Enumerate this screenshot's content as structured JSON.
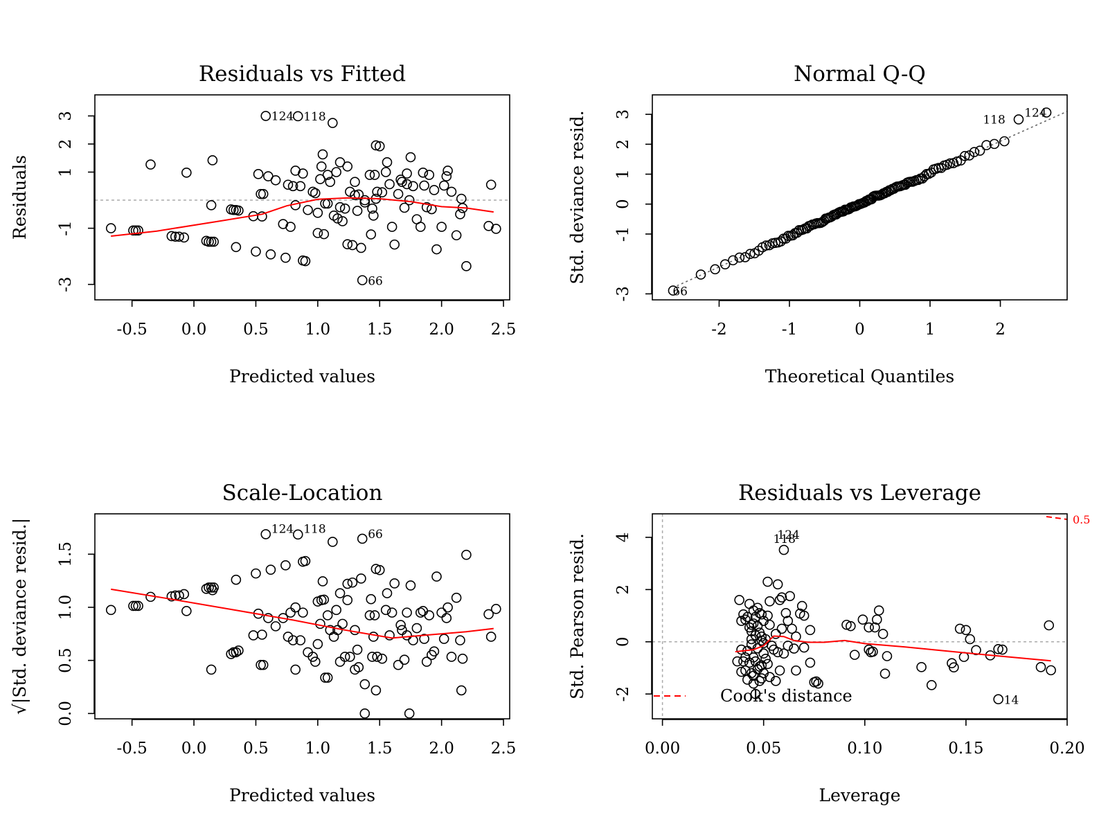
{
  "chart_data": [
    {
      "type": "scatter",
      "title": "Residuals vs Fitted",
      "xlabel": "Predicted values",
      "ylabel": "Residuals",
      "xlim": [
        -0.8,
        2.55
      ],
      "ylim": [
        -3.55,
        3.75
      ],
      "xticks": [
        "-0.5",
        "0.0",
        "0.5",
        "1.0",
        "1.5",
        "2.0",
        "2.5"
      ],
      "yticks": [
        "-3",
        "-1",
        "1",
        "2",
        "3"
      ],
      "reference_line": 0,
      "smooth_color": "#ff0000",
      "points": [
        [
          -0.67,
          -1.0
        ],
        [
          -0.49,
          -1.08
        ],
        [
          -0.47,
          -1.08
        ],
        [
          -0.45,
          -1.08
        ],
        [
          -0.35,
          1.27
        ],
        [
          -0.18,
          -1.28
        ],
        [
          -0.15,
          -1.3
        ],
        [
          -0.12,
          -1.3
        ],
        [
          -0.08,
          -1.33
        ],
        [
          -0.06,
          0.98
        ],
        [
          0.1,
          -1.45
        ],
        [
          0.12,
          -1.48
        ],
        [
          0.14,
          -1.48
        ],
        [
          0.15,
          1.42
        ],
        [
          0.16,
          -1.48
        ],
        [
          0.14,
          -0.18
        ],
        [
          0.3,
          -0.33
        ],
        [
          0.32,
          -0.35
        ],
        [
          0.34,
          -0.35
        ],
        [
          0.36,
          -0.37
        ],
        [
          0.34,
          -1.67
        ],
        [
          0.48,
          -0.57
        ],
        [
          0.5,
          -1.83
        ],
        [
          0.52,
          0.93
        ],
        [
          0.54,
          0.22
        ],
        [
          0.55,
          -0.58
        ],
        [
          0.56,
          0.22
        ],
        [
          0.58,
          3.0
        ],
        [
          0.6,
          0.85
        ],
        [
          0.62,
          -1.93
        ],
        [
          0.66,
          0.71
        ],
        [
          0.72,
          -0.85
        ],
        [
          0.74,
          -2.05
        ],
        [
          0.76,
          0.55
        ],
        [
          0.78,
          -0.95
        ],
        [
          0.8,
          0.5
        ],
        [
          0.82,
          -0.18
        ],
        [
          0.84,
          2.99
        ],
        [
          0.82,
          1.05
        ],
        [
          0.86,
          0.5
        ],
        [
          0.88,
          -2.15
        ],
        [
          0.88,
          0.95
        ],
        [
          0.9,
          -2.17
        ],
        [
          0.92,
          -0.35
        ],
        [
          0.96,
          0.3
        ],
        [
          0.98,
          0.25
        ],
        [
          1.0,
          -0.45
        ],
        [
          1.0,
          -1.17
        ],
        [
          1.02,
          0.75
        ],
        [
          1.03,
          1.2
        ],
        [
          1.04,
          1.63
        ],
        [
          1.05,
          -1.21
        ],
        [
          1.06,
          -0.12
        ],
        [
          1.08,
          -0.12
        ],
        [
          1.08,
          0.9
        ],
        [
          1.1,
          0.65
        ],
        [
          1.12,
          2.75
        ],
        [
          1.13,
          -0.55
        ],
        [
          1.15,
          1.0
        ],
        [
          1.16,
          -0.65
        ],
        [
          1.18,
          -0.25
        ],
        [
          1.18,
          1.35
        ],
        [
          1.2,
          -0.75
        ],
        [
          1.22,
          -0.3
        ],
        [
          1.24,
          1.2
        ],
        [
          1.24,
          -1.57
        ],
        [
          1.26,
          0.3
        ],
        [
          1.28,
          -1.6
        ],
        [
          1.3,
          0.65
        ],
        [
          1.3,
          0.18
        ],
        [
          1.32,
          -0.38
        ],
        [
          1.33,
          0.2
        ],
        [
          1.35,
          -1.7
        ],
        [
          1.36,
          -2.85
        ],
        [
          1.38,
          -0.08
        ],
        [
          1.38,
          0.0
        ],
        [
          1.42,
          0.9
        ],
        [
          1.43,
          -1.22
        ],
        [
          1.44,
          -0.3
        ],
        [
          1.45,
          -0.55
        ],
        [
          1.46,
          0.9
        ],
        [
          1.47,
          0.05
        ],
        [
          1.47,
          1.95
        ],
        [
          1.48,
          0.3
        ],
        [
          1.5,
          1.92
        ],
        [
          1.52,
          0.28
        ],
        [
          1.55,
          1.0
        ],
        [
          1.56,
          1.35
        ],
        [
          1.58,
          0.57
        ],
        [
          1.6,
          -0.95
        ],
        [
          1.62,
          -1.58
        ],
        [
          1.65,
          0.22
        ],
        [
          1.67,
          0.73
        ],
        [
          1.68,
          0.65
        ],
        [
          1.7,
          -0.27
        ],
        [
          1.72,
          0.57
        ],
        [
          1.72,
          0.95
        ],
        [
          1.74,
          0.0
        ],
        [
          1.75,
          1.53
        ],
        [
          1.77,
          0.5
        ],
        [
          1.8,
          -0.68
        ],
        [
          1.83,
          -0.95
        ],
        [
          1.85,
          0.98
        ],
        [
          1.86,
          0.52
        ],
        [
          1.88,
          -0.25
        ],
        [
          1.9,
          0.9
        ],
        [
          1.92,
          -0.32
        ],
        [
          1.94,
          0.36
        ],
        [
          1.96,
          -1.75
        ],
        [
          2.0,
          -0.95
        ],
        [
          2.02,
          0.52
        ],
        [
          2.04,
          0.85
        ],
        [
          2.05,
          1.05
        ],
        [
          2.08,
          0.3
        ],
        [
          2.12,
          -1.25
        ],
        [
          2.15,
          -0.5
        ],
        [
          2.16,
          0.05
        ],
        [
          2.17,
          -0.28
        ],
        [
          2.2,
          -2.35
        ],
        [
          2.38,
          -0.92
        ],
        [
          2.4,
          0.55
        ],
        [
          2.44,
          -1.02
        ]
      ],
      "point_labels": [
        {
          "text": "124",
          "x": 0.58,
          "y": 3.0
        },
        {
          "text": "118",
          "x": 0.84,
          "y": 2.99
        },
        {
          "text": "66",
          "x": 1.36,
          "y": -2.85
        }
      ],
      "smooth": [
        [
          -0.67,
          -1.28
        ],
        [
          -0.3,
          -1.1
        ],
        [
          0.2,
          -0.75
        ],
        [
          0.55,
          -0.5
        ],
        [
          0.75,
          -0.2
        ],
        [
          1.0,
          0.03
        ],
        [
          1.25,
          0.08
        ],
        [
          1.5,
          0.05
        ],
        [
          1.75,
          -0.05
        ],
        [
          2.0,
          -0.23
        ],
        [
          2.2,
          -0.28
        ],
        [
          2.42,
          -0.42
        ]
      ]
    },
    {
      "type": "scatter",
      "title": "Normal Q-Q",
      "xlabel": "Theoretical Quantiles",
      "ylabel": "Std. deviance resid.",
      "xlim": [
        -2.95,
        2.95
      ],
      "ylim": [
        -3.2,
        3.65
      ],
      "xticks": [
        "-2",
        "-1",
        "0",
        "1",
        "2"
      ],
      "yticks": [
        "-3",
        "-1",
        "0",
        "1",
        "2",
        "3"
      ],
      "reference_line": "y = x",
      "point_labels": [
        {
          "text": "118",
          "x": 2.15,
          "y": 2.83
        },
        {
          "text": "124",
          "x": 2.74,
          "y": 3.06
        },
        {
          "text": "66",
          "x": -2.74,
          "y": -2.89
        }
      ]
    },
    {
      "type": "scatter",
      "title": "Scale-Location",
      "xlabel": "Predicted values",
      "ylabel": "√|Std. deviance resid.|",
      "xlim": [
        -0.8,
        2.55
      ],
      "ylim": [
        -0.05,
        1.88
      ],
      "xticks": [
        "-0.5",
        "0.0",
        "0.5",
        "1.0",
        "1.5",
        "2.0",
        "2.5"
      ],
      "yticks": [
        "0.0",
        "0.5",
        "1.0",
        "1.5"
      ],
      "smooth_color": "#ff0000",
      "point_labels": [
        {
          "text": "124",
          "x": 0.58,
          "y": 1.74
        },
        {
          "text": "118",
          "x": 0.84,
          "y": 1.74
        },
        {
          "text": "66",
          "x": 1.36,
          "y": 1.69
        }
      ],
      "smooth": [
        [
          -0.67,
          1.17
        ],
        [
          -0.2,
          1.08
        ],
        [
          0.3,
          0.98
        ],
        [
          0.8,
          0.88
        ],
        [
          1.2,
          0.79
        ],
        [
          1.6,
          0.71
        ],
        [
          1.9,
          0.74
        ],
        [
          2.2,
          0.77
        ],
        [
          2.42,
          0.8
        ]
      ]
    },
    {
      "type": "scatter",
      "title": "Residuals vs Leverage",
      "xlabel": "Leverage",
      "ylabel": "Std. Pearson resid.",
      "xlim": [
        -0.005,
        0.2
      ],
      "ylim": [
        -2.95,
        4.9
      ],
      "xticks": [
        "0.00",
        "0.05",
        "0.10",
        "0.15",
        "0.20"
      ],
      "yticks": [
        "-2",
        "0",
        "2",
        "4"
      ],
      "reference_line": 0,
      "smooth_color": "#ff0000",
      "legend": {
        "text": "Cook's distance",
        "position": "bottom-left",
        "color": "#ff0000",
        "line": "dashed"
      },
      "cook_label": "0.5",
      "point_labels": [
        {
          "text": "124",
          "x": 0.054,
          "y": 4.1
        },
        {
          "text": "118",
          "x": 0.052,
          "y": 3.95
        },
        {
          "text": "14",
          "x": 0.166,
          "y": -2.2
        }
      ],
      "points": [
        [
          0.187,
          -0.97
        ],
        [
          0.192,
          -1.09
        ],
        [
          0.191,
          0.63
        ],
        [
          0.166,
          -0.28
        ],
        [
          0.168,
          -0.3
        ],
        [
          0.162,
          -0.52
        ],
        [
          0.166,
          -2.2
        ],
        [
          0.155,
          -0.32
        ],
        [
          0.152,
          0.1
        ],
        [
          0.149,
          -0.58
        ],
        [
          0.15,
          0.45
        ],
        [
          0.147,
          0.5
        ],
        [
          0.144,
          -0.98
        ],
        [
          0.143,
          -0.82
        ],
        [
          0.133,
          -1.66
        ],
        [
          0.128,
          -0.97
        ],
        [
          0.111,
          -0.55
        ],
        [
          0.11,
          -1.22
        ],
        [
          0.109,
          0.3
        ],
        [
          0.107,
          1.2
        ],
        [
          0.106,
          0.85
        ],
        [
          0.105,
          0.55
        ],
        [
          0.104,
          -0.38
        ],
        [
          0.103,
          -0.4
        ],
        [
          0.102,
          -0.3
        ],
        [
          0.102,
          0.55
        ],
        [
          0.099,
          0.85
        ],
        [
          0.095,
          -0.5
        ],
        [
          0.093,
          0.6
        ],
        [
          0.091,
          0.65
        ],
        [
          0.077,
          -1.6
        ],
        [
          0.076,
          -1.52
        ],
        [
          0.075,
          -1.55
        ],
        [
          0.073,
          -0.8
        ],
        [
          0.073,
          0.45
        ],
        [
          0.07,
          -0.22
        ],
        [
          0.07,
          1.0
        ],
        [
          0.069,
          1.37
        ],
        [
          0.068,
          1.08
        ],
        [
          0.066,
          -1.1
        ],
        [
          0.066,
          0.2
        ],
        [
          0.065,
          -0.26
        ],
        [
          0.064,
          0.5
        ],
        [
          0.063,
          1.75
        ],
        [
          0.062,
          -0.15
        ],
        [
          0.062,
          0.8
        ],
        [
          0.061,
          1.1
        ],
        [
          0.06,
          3.52
        ],
        [
          0.06,
          -0.45
        ],
        [
          0.059,
          1.7
        ],
        [
          0.059,
          0.5
        ],
        [
          0.058,
          -1.1
        ],
        [
          0.058,
          1.6
        ],
        [
          0.057,
          2.2
        ],
        [
          0.057,
          -0.4
        ],
        [
          0.056,
          0.3
        ],
        [
          0.056,
          -1.5
        ],
        [
          0.055,
          -0.3
        ],
        [
          0.054,
          -0.15
        ],
        [
          0.053,
          0.65
        ],
        [
          0.053,
          1.55
        ],
        [
          0.052,
          -0.85
        ],
        [
          0.052,
          2.3
        ],
        [
          0.052,
          1.0
        ],
        [
          0.051,
          0.1
        ],
        [
          0.051,
          -0.65
        ],
        [
          0.05,
          -0.45
        ],
        [
          0.05,
          0.8
        ],
        [
          0.05,
          -1.2
        ],
        [
          0.049,
          1.05
        ],
        [
          0.049,
          0.2
        ],
        [
          0.049,
          -1.4
        ],
        [
          0.048,
          1.1
        ],
        [
          0.048,
          -0.95
        ],
        [
          0.048,
          0.35
        ],
        [
          0.047,
          0.6
        ],
        [
          0.047,
          -1.05
        ],
        [
          0.047,
          -0.25
        ],
        [
          0.046,
          0.95
        ],
        [
          0.046,
          -0.75
        ],
        [
          0.046,
          0.25
        ],
        [
          0.045,
          1.2
        ],
        [
          0.045,
          -1.6
        ],
        [
          0.045,
          -0.6
        ],
        [
          0.045,
          0.7
        ],
        [
          0.045,
          -1.3
        ],
        [
          0.044,
          0.1
        ],
        [
          0.044,
          -0.1
        ],
        [
          0.044,
          -1.2
        ],
        [
          0.044,
          0.4
        ],
        [
          0.043,
          1.45
        ],
        [
          0.043,
          -0.8
        ],
        [
          0.043,
          0.55
        ],
        [
          0.042,
          -1.45
        ],
        [
          0.042,
          0.95
        ],
        [
          0.042,
          -0.35
        ],
        [
          0.041,
          0.85
        ],
        [
          0.041,
          -1.1
        ],
        [
          0.041,
          -0.6
        ],
        [
          0.04,
          1.05
        ],
        [
          0.04,
          -0.75
        ],
        [
          0.039,
          0.8
        ],
        [
          0.039,
          -1.15
        ],
        [
          0.038,
          1.6
        ],
        [
          0.037,
          -0.75
        ],
        [
          0.039,
          -0.3
        ],
        [
          0.046,
          -2.0
        ],
        [
          0.048,
          -1.5
        ],
        [
          0.049,
          -0.9
        ],
        [
          0.053,
          -1.35
        ],
        [
          0.044,
          0.65
        ],
        [
          0.047,
          1.3
        ],
        [
          0.049,
          0.05
        ],
        [
          0.05,
          -0.05
        ]
      ],
      "smooth": [
        [
          0.036,
          -0.38
        ],
        [
          0.045,
          -0.3
        ],
        [
          0.05,
          -0.15
        ],
        [
          0.055,
          0.22
        ],
        [
          0.06,
          0.2
        ],
        [
          0.065,
          0.05
        ],
        [
          0.072,
          -0.02
        ],
        [
          0.08,
          -0.02
        ],
        [
          0.09,
          0.05
        ],
        [
          0.1,
          -0.07
        ],
        [
          0.12,
          -0.2
        ],
        [
          0.14,
          -0.35
        ],
        [
          0.16,
          -0.5
        ],
        [
          0.192,
          -0.73
        ]
      ]
    }
  ]
}
